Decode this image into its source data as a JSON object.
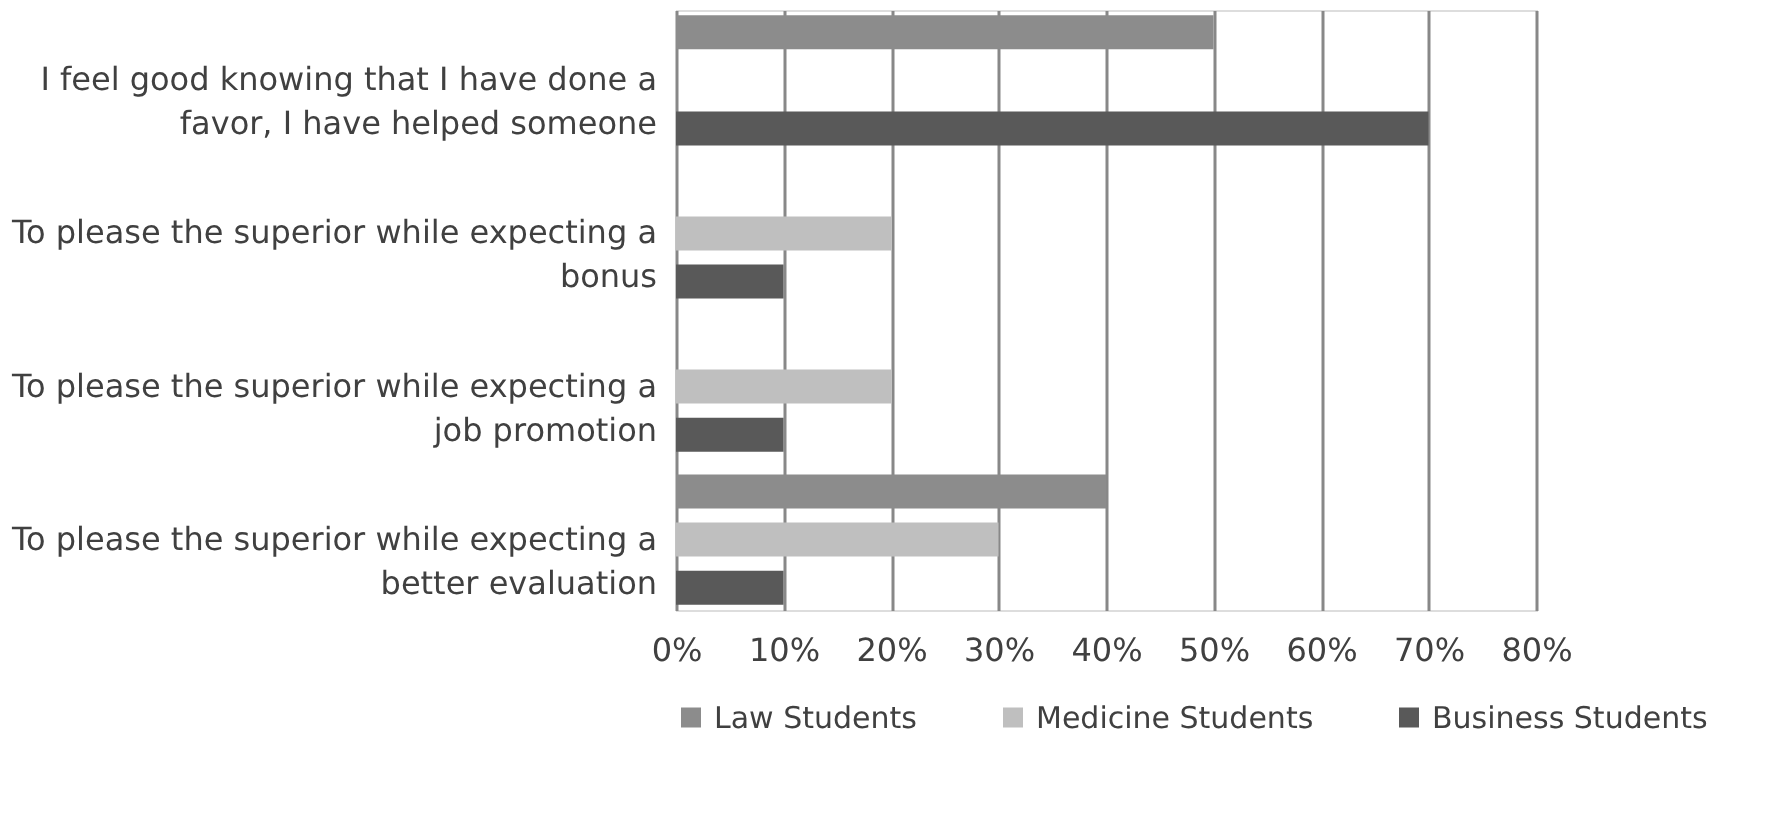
{
  "chart_data": {
    "type": "bar",
    "orientation": "horizontal",
    "categories": [
      "I feel good knowing that I have done a favor, I have helped someone",
      "To please the superior while expecting a bonus",
      "To please the superior while expecting a job promotion",
      "To please the superior while expecting a better evaluation"
    ],
    "series": [
      {
        "name": "Law Students",
        "color": "#8c8c8c",
        "values": [
          50,
          0,
          0,
          40
        ]
      },
      {
        "name": "Medicine Students",
        "color": "#bfbfbf",
        "values": [
          0,
          20,
          20,
          30
        ]
      },
      {
        "name": "Business Students",
        "color": "#595959",
        "values": [
          70,
          10,
          10,
          10
        ]
      }
    ],
    "xlim": [
      0,
      80
    ],
    "xticks": [
      {
        "value": 0,
        "label": "0%"
      },
      {
        "value": 10,
        "label": "10%"
      },
      {
        "value": 20,
        "label": "20%"
      },
      {
        "value": 30,
        "label": "30%"
      },
      {
        "value": 40,
        "label": "40%"
      },
      {
        "value": 50,
        "label": "50%"
      },
      {
        "value": 60,
        "label": "60%"
      },
      {
        "value": 70,
        "label": "70%"
      },
      {
        "value": 80,
        "label": "80%"
      }
    ],
    "grid": "x",
    "legend": "bottom"
  }
}
